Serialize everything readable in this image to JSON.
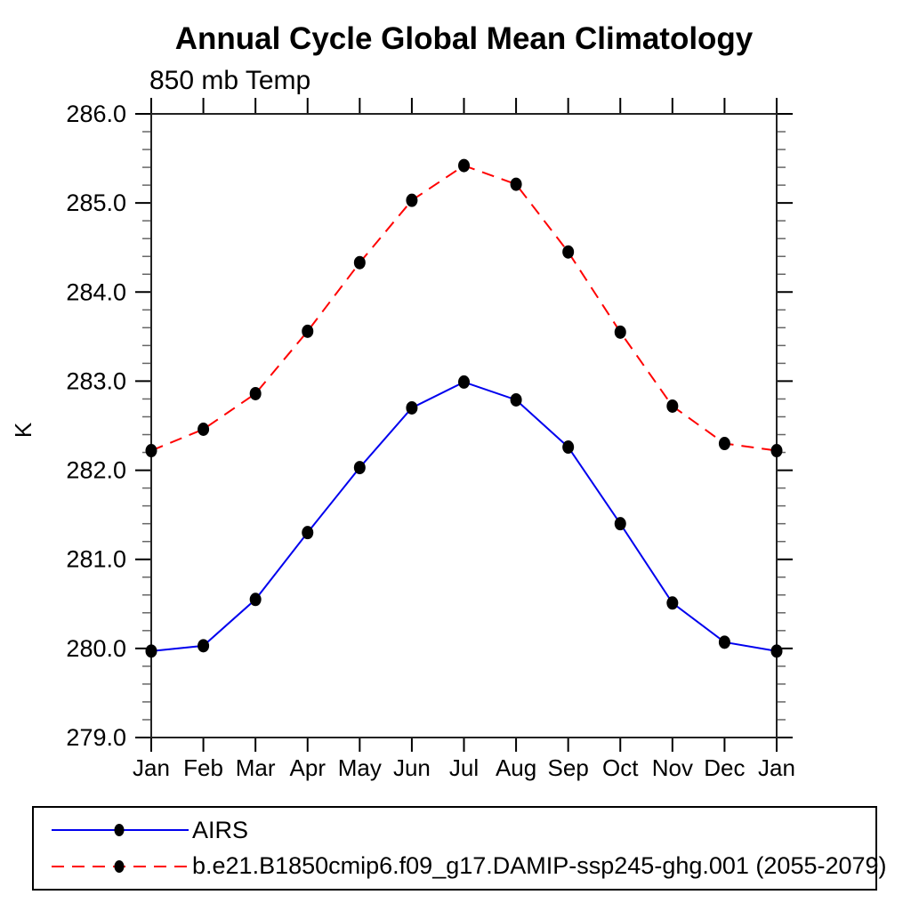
{
  "chart_data": {
    "type": "line",
    "title": "Annual Cycle Global Mean Climatology",
    "subtitle": "850 mb Temp",
    "xlabel": "",
    "ylabel": "K",
    "x": [
      "Jan",
      "Feb",
      "Mar",
      "Apr",
      "May",
      "Jun",
      "Jul",
      "Aug",
      "Sep",
      "Oct",
      "Nov",
      "Dec",
      "Jan"
    ],
    "ylim": [
      279.0,
      286.0
    ],
    "yticks": [
      279.0,
      280.0,
      281.0,
      282.0,
      283.0,
      284.0,
      285.0,
      286.0
    ],
    "ytick_minor_step": 0.2,
    "grid": false,
    "legend_position": "bottom-outside-box",
    "marker_color": "#000000",
    "series": [
      {
        "name": "AIRS",
        "color": "#0000ee",
        "style": "solid",
        "dash": "",
        "values": [
          279.97,
          280.03,
          280.55,
          281.3,
          282.03,
          282.7,
          282.99,
          282.79,
          282.26,
          281.4,
          280.51,
          280.07,
          279.97
        ]
      },
      {
        "name": "b.e21.B1850cmip6.f09_g17.DAMIP-ssp245-ghg.001 (2055-2079)",
        "color": "#ff0000",
        "style": "dashed",
        "dash": "14 9",
        "values": [
          282.22,
          282.46,
          282.86,
          283.56,
          284.33,
          285.03,
          285.42,
          285.21,
          284.45,
          283.55,
          282.72,
          282.3,
          282.22
        ]
      }
    ]
  }
}
